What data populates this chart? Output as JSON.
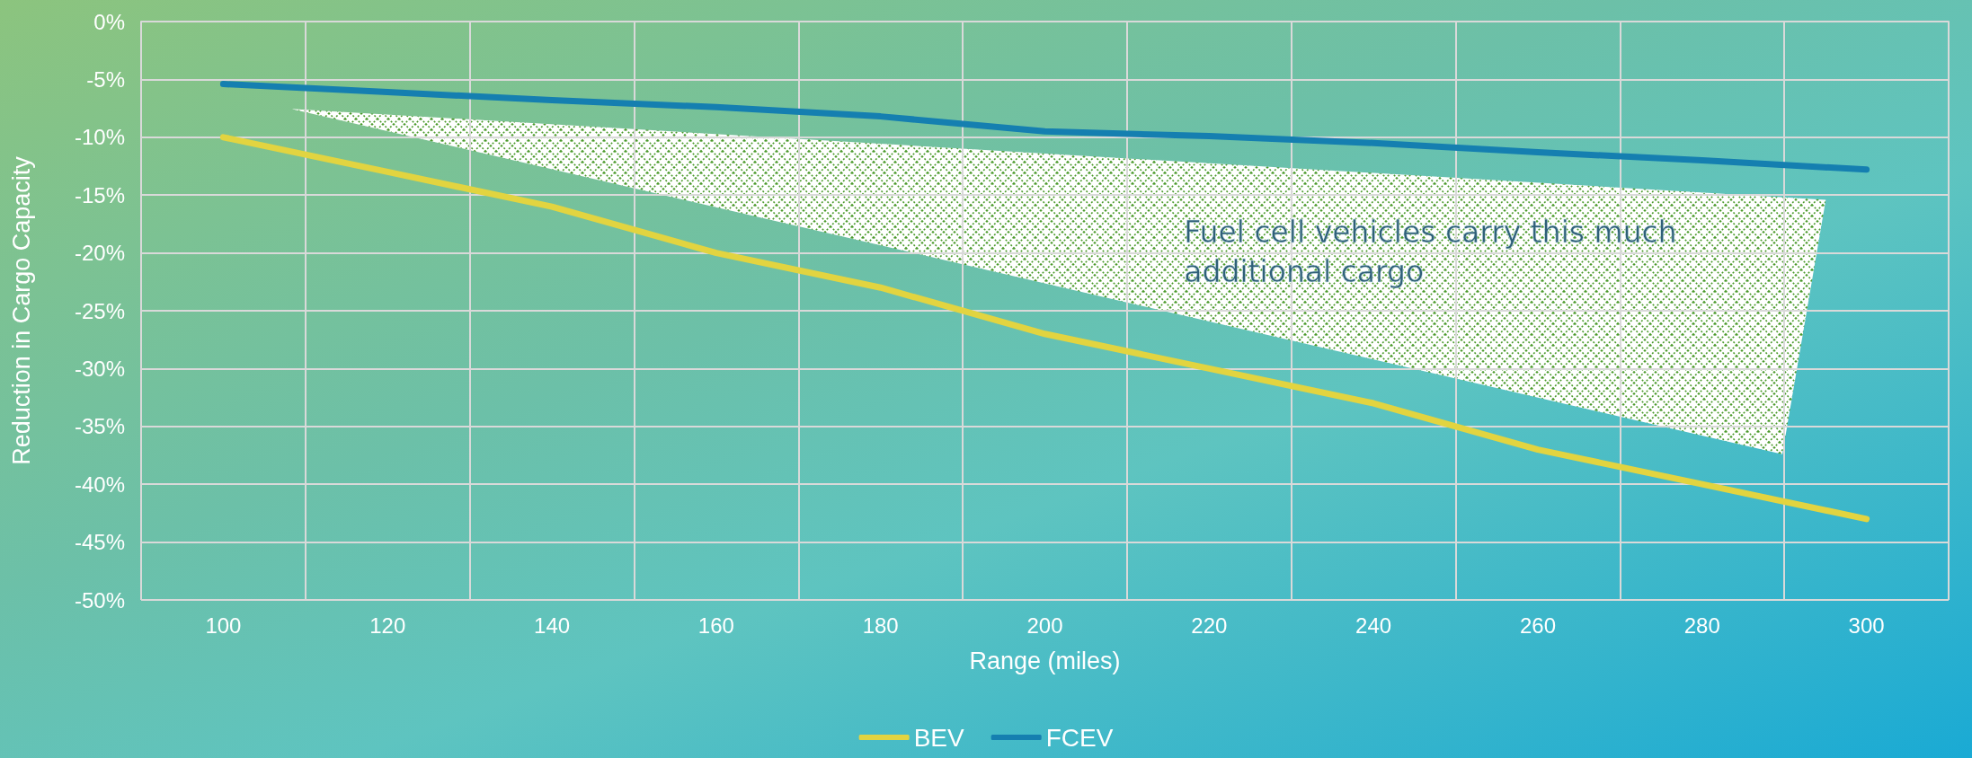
{
  "chart_data": {
    "type": "line",
    "xlabel": "Range (miles)",
    "ylabel": "Reduction in Cargo Capacity",
    "categories": [
      "100",
      "120",
      "140",
      "160",
      "180",
      "200",
      "220",
      "240",
      "260",
      "280",
      "300"
    ],
    "series": [
      {
        "name": "BEV",
        "color": "#e2d440",
        "values": [
          -10,
          -13,
          -16,
          -20,
          -23,
          -27,
          -30,
          -33,
          -37,
          -40,
          -43
        ]
      },
      {
        "name": "FCEV",
        "color": "#157fb0",
        "values": [
          -5.4,
          -6.1,
          -6.8,
          -7.4,
          -8.2,
          -9.5,
          -9.9,
          -10.5,
          -11.3,
          -12,
          -12.8
        ]
      }
    ],
    "ylim": [
      -50,
      0
    ],
    "yticks": [
      {
        "value": -50,
        "label": "-50%"
      },
      {
        "value": -45,
        "label": "-45%"
      },
      {
        "value": -40,
        "label": "-40%"
      },
      {
        "value": -35,
        "label": "-35%"
      },
      {
        "value": -30,
        "label": "-30%"
      },
      {
        "value": -25,
        "label": "-25%"
      },
      {
        "value": -20,
        "label": "-20%"
      },
      {
        "value": -15,
        "label": "-15%"
      },
      {
        "value": -10,
        "label": "-10%"
      },
      {
        "value": -5,
        "label": "-5%"
      },
      {
        "value": 0,
        "label": "0%"
      }
    ],
    "annotations": [
      "Fuel cell vehicles carry this much additional cargo"
    ],
    "grid": true,
    "legend": "bottom",
    "marker": "none",
    "line_style": "solid"
  }
}
